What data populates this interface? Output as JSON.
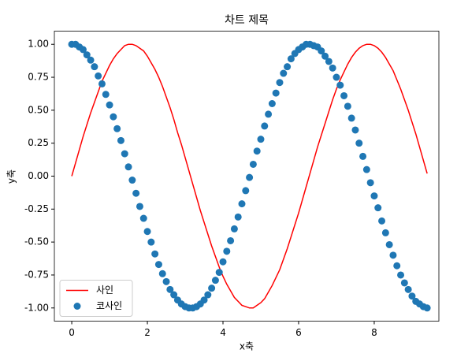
{
  "chart_data": {
    "type": "line_scatter",
    "title": "차트 제목",
    "xlabel": "x축",
    "ylabel": "y축",
    "x": [
      0.0,
      0.1,
      0.2,
      0.3,
      0.4,
      0.5,
      0.6,
      0.7,
      0.8,
      0.9,
      1.0,
      1.1,
      1.2,
      1.3,
      1.4,
      1.5,
      1.6,
      1.7,
      1.8,
      1.9,
      2.0,
      2.1,
      2.2,
      2.3,
      2.4,
      2.5,
      2.6,
      2.7,
      2.8,
      2.9,
      3.0,
      3.1,
      3.2,
      3.3,
      3.4,
      3.5,
      3.6,
      3.7,
      3.8,
      3.9,
      4.0,
      4.1,
      4.2,
      4.3,
      4.4,
      4.5,
      4.6,
      4.7,
      4.8,
      4.9,
      5.0,
      5.1,
      5.2,
      5.3,
      5.4,
      5.5,
      5.6,
      5.7,
      5.8,
      5.9,
      6.0,
      6.1,
      6.2,
      6.3,
      6.4,
      6.5,
      6.6,
      6.7,
      6.8,
      6.9,
      7.0,
      7.1,
      7.2,
      7.3,
      7.4,
      7.5,
      7.6,
      7.7,
      7.8,
      7.9,
      8.0,
      8.1,
      8.2,
      8.3,
      8.4,
      8.5,
      8.6,
      8.7,
      8.8,
      8.9,
      9.0,
      9.1,
      9.2,
      9.3,
      9.4
    ],
    "series": [
      {
        "name": "사인",
        "type": "line",
        "color": "#ff0000",
        "values": [
          0,
          0.1,
          0.2,
          0.3,
          0.39,
          0.48,
          0.56,
          0.64,
          0.72,
          0.78,
          0.84,
          0.89,
          0.93,
          0.96,
          0.99,
          1.0,
          1.0,
          0.99,
          0.97,
          0.95,
          0.91,
          0.86,
          0.81,
          0.75,
          0.68,
          0.6,
          0.52,
          0.43,
          0.33,
          0.24,
          0.14,
          0.04,
          -0.06,
          -0.16,
          -0.26,
          -0.35,
          -0.44,
          -0.53,
          -0.61,
          -0.69,
          -0.76,
          -0.82,
          -0.87,
          -0.92,
          -0.95,
          -0.98,
          -0.99,
          -1.0,
          -1.0,
          -0.98,
          -0.96,
          -0.93,
          -0.88,
          -0.83,
          -0.77,
          -0.71,
          -0.63,
          -0.55,
          -0.46,
          -0.37,
          -0.28,
          -0.18,
          -0.08,
          0.02,
          0.12,
          0.22,
          0.31,
          0.4,
          0.49,
          0.58,
          0.66,
          0.73,
          0.79,
          0.85,
          0.9,
          0.94,
          0.97,
          0.99,
          1.0,
          1.0,
          0.99,
          0.97,
          0.94,
          0.9,
          0.85,
          0.8,
          0.73,
          0.66,
          0.58,
          0.5,
          0.41,
          0.32,
          0.22,
          0.12,
          0.02
        ]
      },
      {
        "name": "코사인",
        "type": "scatter",
        "color": "#1f77b4",
        "values": [
          1,
          1.0,
          0.98,
          0.96,
          0.92,
          0.88,
          0.83,
          0.76,
          0.7,
          0.62,
          0.54,
          0.45,
          0.36,
          0.27,
          0.17,
          0.07,
          -0.03,
          -0.13,
          -0.23,
          -0.32,
          -0.42,
          -0.5,
          -0.59,
          -0.67,
          -0.74,
          -0.8,
          -0.86,
          -0.9,
          -0.94,
          -0.97,
          -0.99,
          -1.0,
          -1.0,
          -0.99,
          -0.97,
          -0.94,
          -0.9,
          -0.85,
          -0.79,
          -0.73,
          -0.65,
          -0.57,
          -0.49,
          -0.4,
          -0.31,
          -0.21,
          -0.11,
          -0.01,
          0.09,
          0.19,
          0.28,
          0.38,
          0.47,
          0.55,
          0.63,
          0.71,
          0.78,
          0.83,
          0.89,
          0.93,
          0.96,
          0.98,
          1.0,
          1.0,
          0.99,
          0.98,
          0.95,
          0.91,
          0.87,
          0.82,
          0.75,
          0.69,
          0.61,
          0.53,
          0.44,
          0.35,
          0.25,
          0.15,
          0.05,
          -0.05,
          -0.15,
          -0.24,
          -0.34,
          -0.43,
          -0.52,
          -0.6,
          -0.68,
          -0.75,
          -0.81,
          -0.86,
          -0.91,
          -0.95,
          -0.97,
          -0.99,
          -1.0
        ]
      }
    ],
    "xlim": [
      -0.46,
      9.71
    ],
    "ylim": [
      -1.1,
      1.1
    ],
    "xticks": [
      0,
      2,
      4,
      6,
      8
    ],
    "yticks": [
      {
        "value": -1,
        "label": "-1.00"
      },
      {
        "value": -0.75,
        "label": "-0.75"
      },
      {
        "value": -0.5,
        "label": "-0.50"
      },
      {
        "value": -0.25,
        "label": "-0.25"
      },
      {
        "value": 0,
        "label": "0.00"
      },
      {
        "value": 0.25,
        "label": "0.25"
      },
      {
        "value": 0.5,
        "label": "0.50"
      },
      {
        "value": 0.75,
        "label": "0.75"
      },
      {
        "value": 1,
        "label": "1.00"
      }
    ],
    "grid": false,
    "legend": "lower left"
  }
}
